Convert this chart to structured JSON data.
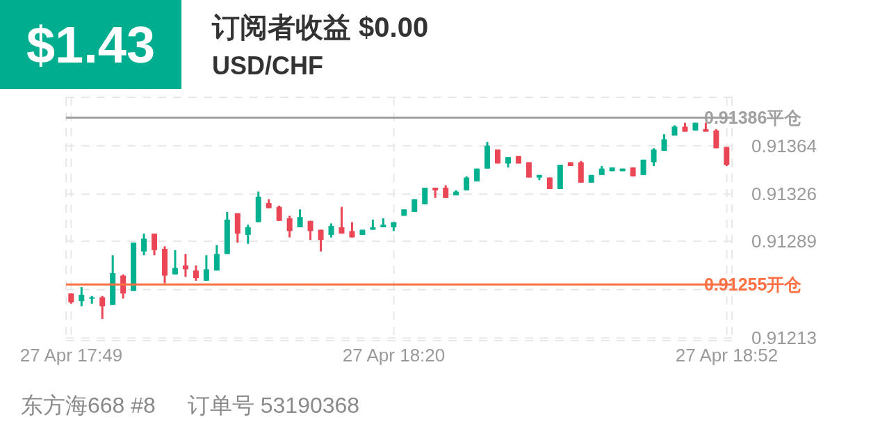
{
  "chart_data": {
    "type": "candlestick",
    "title": "订阅者收益 $0.00",
    "subtitle": "USD/CHF",
    "annotations": [
      "$1.43",
      "东方海668 #8",
      "订单号 53190368"
    ],
    "categories": [
      "27 Apr  17:49",
      null,
      null,
      null,
      null,
      null,
      null,
      null,
      null,
      null,
      null,
      null,
      null,
      null,
      null,
      null,
      null,
      null,
      null,
      null,
      null,
      null,
      null,
      null,
      null,
      null,
      null,
      null,
      null,
      null,
      null,
      "27 Apr  18:20",
      null,
      null,
      null,
      null,
      null,
      null,
      null,
      null,
      null,
      null,
      null,
      null,
      null,
      null,
      null,
      null,
      null,
      null,
      null,
      null,
      null,
      null,
      null,
      null,
      null,
      null,
      null,
      null,
      null,
      null,
      null,
      "27 Apr  18:52"
    ],
    "ohlc": [
      [
        0.91248,
        0.91248,
        0.9124,
        0.91241
      ],
      [
        0.91242,
        0.91253,
        0.91238,
        0.91247
      ],
      [
        0.91244,
        0.91246,
        0.9124,
        0.91245
      ],
      [
        0.91245,
        0.91246,
        0.91228,
        0.91238
      ],
      [
        0.91239,
        0.91278,
        0.91239,
        0.91264
      ],
      [
        0.91262,
        0.91263,
        0.91244,
        0.91248
      ],
      [
        0.9125,
        0.91288,
        0.9125,
        0.91288
      ],
      [
        0.91281,
        0.91295,
        0.91278,
        0.91291
      ],
      [
        0.91295,
        0.91295,
        0.91278,
        0.91282
      ],
      [
        0.91283,
        0.91285,
        0.91256,
        0.91262
      ],
      [
        0.91263,
        0.91282,
        0.91263,
        0.91268
      ],
      [
        0.9127,
        0.91279,
        0.91261,
        0.91267
      ],
      [
        0.91266,
        0.9127,
        0.91258,
        0.9126
      ],
      [
        0.91258,
        0.91278,
        0.91258,
        0.91267
      ],
      [
        0.91266,
        0.91286,
        0.91266,
        0.91279
      ],
      [
        0.91279,
        0.91312,
        0.91279,
        0.91306
      ],
      [
        0.91311,
        0.91311,
        0.91288,
        0.91295
      ],
      [
        0.91294,
        0.91302,
        0.91287,
        0.913
      ],
      [
        0.91304,
        0.91328,
        0.91304,
        0.91324
      ],
      [
        0.91319,
        0.91322,
        0.91315,
        0.91315
      ],
      [
        0.91316,
        0.91317,
        0.91305,
        0.91305
      ],
      [
        0.91307,
        0.91309,
        0.91292,
        0.91297
      ],
      [
        0.913,
        0.91314,
        0.913,
        0.91308
      ],
      [
        0.91305,
        0.91305,
        0.9129,
        0.91297
      ],
      [
        0.91298,
        0.91298,
        0.91281,
        0.9129
      ],
      [
        0.91294,
        0.91303,
        0.91292,
        0.91301
      ],
      [
        0.913,
        0.91316,
        0.91295,
        0.91295
      ],
      [
        0.91297,
        0.91304,
        0.91292,
        0.91292
      ],
      [
        0.91294,
        0.91298,
        0.91294,
        0.91298
      ],
      [
        0.91298,
        0.91306,
        0.91298,
        0.913
      ],
      [
        0.913,
        0.91307,
        0.913,
        0.91302
      ],
      [
        0.913,
        0.91304,
        0.91297,
        0.91304
      ],
      [
        0.91309,
        0.91314,
        0.91309,
        0.91314
      ],
      [
        0.91312,
        0.91322,
        0.91312,
        0.91322
      ],
      [
        0.91318,
        0.91331,
        0.91318,
        0.91331
      ],
      [
        0.91331,
        0.91331,
        0.91323,
        0.91329
      ],
      [
        0.91331,
        0.91333,
        0.91323,
        0.91323
      ],
      [
        0.91325,
        0.91329,
        0.91325,
        0.91328
      ],
      [
        0.91329,
        0.9134,
        0.91329,
        0.91339
      ],
      [
        0.91336,
        0.91346,
        0.91336,
        0.91346
      ],
      [
        0.91346,
        0.91367,
        0.91346,
        0.91364
      ],
      [
        0.91361,
        0.91361,
        0.9135,
        0.9135
      ],
      [
        0.9135,
        0.91355,
        0.91347,
        0.91355
      ],
      [
        0.91356,
        0.91356,
        0.9135,
        0.9135
      ],
      [
        0.91351,
        0.91351,
        0.91339,
        0.91339
      ],
      [
        0.91339,
        0.91341,
        0.91337,
        0.91341
      ],
      [
        0.91339,
        0.91339,
        0.9133,
        0.9133
      ],
      [
        0.9133,
        0.91349,
        0.9133,
        0.91349
      ],
      [
        0.91351,
        0.91351,
        0.91348,
        0.91348
      ],
      [
        0.91351,
        0.91352,
        0.91335,
        0.91335
      ],
      [
        0.91335,
        0.91341,
        0.91335,
        0.91341
      ],
      [
        0.91341,
        0.91348,
        0.91341,
        0.91346
      ],
      [
        0.91344,
        0.91347,
        0.91344,
        0.91347
      ],
      [
        0.91344,
        0.91346,
        0.91344,
        0.91346
      ],
      [
        0.91347,
        0.91347,
        0.9134,
        0.9134
      ],
      [
        0.91341,
        0.91353,
        0.91341,
        0.91353
      ],
      [
        0.91351,
        0.91362,
        0.91348,
        0.91361
      ],
      [
        0.9136,
        0.91373,
        0.9136,
        0.91369
      ],
      [
        0.91372,
        0.9138,
        0.91372,
        0.91379
      ],
      [
        0.91379,
        0.91382,
        0.91375,
        0.91375
      ],
      [
        0.91376,
        0.91382,
        0.91376,
        0.91382
      ],
      [
        0.91377,
        0.91382,
        0.91375,
        0.91375
      ],
      [
        0.91376,
        0.91377,
        0.91362,
        0.91362
      ],
      [
        0.91363,
        0.91363,
        0.91348,
        0.91349
      ]
    ],
    "colors": [
      "#eb4656",
      "#00b08f",
      "#00b08f",
      "#eb4656",
      "#00b08f",
      "#eb4656",
      "#00b08f",
      "#00b08f",
      "#eb4656",
      "#eb4656",
      "#00b08f",
      "#eb4656",
      "#eb4656",
      "#00b08f",
      "#00b08f",
      "#00b08f",
      "#eb4656",
      "#00b08f",
      "#00b08f",
      "#eb4656",
      "#eb4656",
      "#eb4656",
      "#00b08f",
      "#eb4656",
      "#eb4656",
      "#00b08f",
      "#eb4656",
      "#eb4656",
      "#00b08f",
      "#00b08f",
      "#00b08f",
      "#00b08f",
      "#00b08f",
      "#00b08f",
      "#00b08f",
      "#eb4656",
      "#eb4656",
      "#00b08f",
      "#00b08f",
      "#00b08f",
      "#00b08f",
      "#eb4656",
      "#00b08f",
      "#eb4656",
      "#eb4656",
      "#00b08f",
      "#eb4656",
      "#00b08f",
      "#eb4656",
      "#eb4656",
      "#00b08f",
      "#00b08f",
      "#00b08f",
      "#00b08f",
      "#eb4656",
      "#00b08f",
      "#00b08f",
      "#00b08f",
      "#00b08f",
      "#eb4656",
      "#00b08f",
      "#eb4656",
      "#eb4656",
      "#eb4656"
    ],
    "ylim": [
      0.91211,
      0.91402
    ],
    "yticks": [
      0.91213,
      {
        "value": 0.91251,
        "label": null
      },
      0.91289,
      0.91326,
      0.91364,
      {
        "value": 0.91402,
        "label": null
      }
    ],
    "ref_lines": [
      {
        "axis": "y",
        "value": 0.91386,
        "label": "0.91386平仓",
        "color": "#a0a0a0"
      },
      {
        "axis": "y",
        "value": 0.91255,
        "label": "0.91255开仓",
        "color": "#ff7043"
      }
    ],
    "grid": true
  }
}
